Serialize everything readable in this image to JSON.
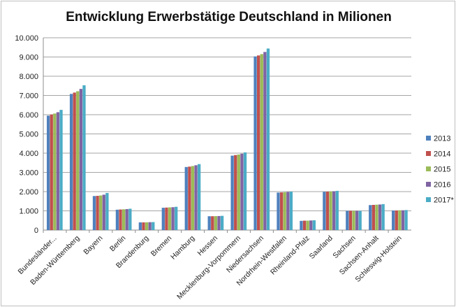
{
  "chart_data": {
    "type": "bar",
    "title": "Entwicklung Erwerbstätige Deutschland in Milionen",
    "xlabel": "",
    "ylabel": "",
    "ylim": [
      0,
      10000
    ],
    "yticks": [
      "0",
      "1.000",
      "2.000",
      "3.000",
      "4.000",
      "5.000",
      "6.000",
      "7.000",
      "8.000",
      "9.000",
      "10.000"
    ],
    "grid": true,
    "legend_position": "right",
    "categories": [
      "Bundesländer...",
      "Baden-Württemberg",
      "Bayern",
      "Berlin",
      "Brandenburg",
      "Bremen",
      "Hamburg",
      "Hessen",
      "Mecklenburg-Vorpommern",
      "Niedersachsen",
      "Nordrhein-Westfalen",
      "Rheinland-Pfalz",
      "Saarland",
      "Sachsen",
      "Sachsen-Anhalt",
      "Schleswig-Holstein"
    ],
    "series": [
      {
        "name": "2013",
        "color": "#4f81bd",
        "values": [
          5950,
          7080,
          1770,
          1060,
          400,
          1160,
          3280,
          720,
          3870,
          9030,
          1950,
          480,
          1990,
          1000,
          1300,
          1020
        ]
      },
      {
        "name": "2014",
        "color": "#c0504d",
        "values": [
          6010,
          7150,
          1780,
          1070,
          400,
          1170,
          3300,
          720,
          3900,
          9080,
          1960,
          490,
          2000,
          1000,
          1310,
          1020
        ]
      },
      {
        "name": "2015",
        "color": "#9bbb59",
        "values": [
          6060,
          7220,
          1800,
          1080,
          405,
          1180,
          3330,
          725,
          3930,
          9150,
          1970,
          490,
          2010,
          1000,
          1320,
          1030
        ]
      },
      {
        "name": "2016",
        "color": "#8064a2",
        "values": [
          6130,
          7340,
          1840,
          1090,
          410,
          1190,
          3370,
          730,
          3970,
          9260,
          1980,
          500,
          2020,
          1000,
          1330,
          1030
        ]
      },
      {
        "name": "2017*",
        "color": "#4bacc6",
        "values": [
          6250,
          7530,
          1930,
          1110,
          415,
          1210,
          3430,
          740,
          4040,
          9440,
          2000,
          510,
          2040,
          1000,
          1350,
          1040
        ]
      }
    ]
  }
}
